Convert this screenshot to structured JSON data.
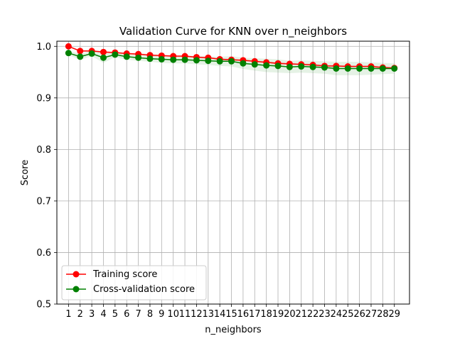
{
  "chart_data": {
    "type": "line",
    "title": "Validation Curve for KNN over n_neighbors",
    "xlabel": "n_neighbors",
    "ylabel": "Score",
    "ylim": [
      0.5,
      1.01
    ],
    "yticks": [
      "0.5",
      "0.6",
      "0.7",
      "0.8",
      "0.9",
      "1.0"
    ],
    "x": [
      1,
      2,
      3,
      4,
      5,
      6,
      7,
      8,
      9,
      10,
      11,
      12,
      13,
      14,
      15,
      16,
      17,
      18,
      19,
      20,
      21,
      22,
      23,
      24,
      25,
      26,
      27,
      28,
      29
    ],
    "grid": true,
    "legend_position": "lower-left",
    "series": [
      {
        "name": "Training score",
        "color": "#ff0000",
        "values": [
          1.0,
          0.991,
          0.991,
          0.989,
          0.988,
          0.986,
          0.985,
          0.983,
          0.982,
          0.981,
          0.981,
          0.979,
          0.978,
          0.975,
          0.974,
          0.973,
          0.971,
          0.969,
          0.967,
          0.966,
          0.965,
          0.964,
          0.962,
          0.962,
          0.961,
          0.961,
          0.961,
          0.959,
          0.958
        ],
        "band": [
          0.0,
          0.002,
          0.002,
          0.002,
          0.002,
          0.002,
          0.002,
          0.002,
          0.002,
          0.002,
          0.002,
          0.002,
          0.002,
          0.002,
          0.002,
          0.002,
          0.002,
          0.002,
          0.002,
          0.002,
          0.002,
          0.002,
          0.002,
          0.002,
          0.002,
          0.002,
          0.002,
          0.002,
          0.002
        ]
      },
      {
        "name": "Cross-validation score",
        "color": "#008000",
        "values": [
          0.987,
          0.98,
          0.986,
          0.978,
          0.984,
          0.98,
          0.978,
          0.976,
          0.975,
          0.974,
          0.974,
          0.973,
          0.972,
          0.971,
          0.971,
          0.967,
          0.965,
          0.963,
          0.962,
          0.96,
          0.961,
          0.96,
          0.959,
          0.957,
          0.957,
          0.957,
          0.957,
          0.957,
          0.957
        ],
        "band": [
          0.004,
          0.006,
          0.005,
          0.01,
          0.005,
          0.006,
          0.006,
          0.006,
          0.007,
          0.007,
          0.007,
          0.008,
          0.008,
          0.009,
          0.01,
          0.011,
          0.012,
          0.013,
          0.013,
          0.012,
          0.012,
          0.012,
          0.012,
          0.013,
          0.013,
          0.013,
          0.012,
          0.011,
          0.01
        ]
      }
    ]
  }
}
